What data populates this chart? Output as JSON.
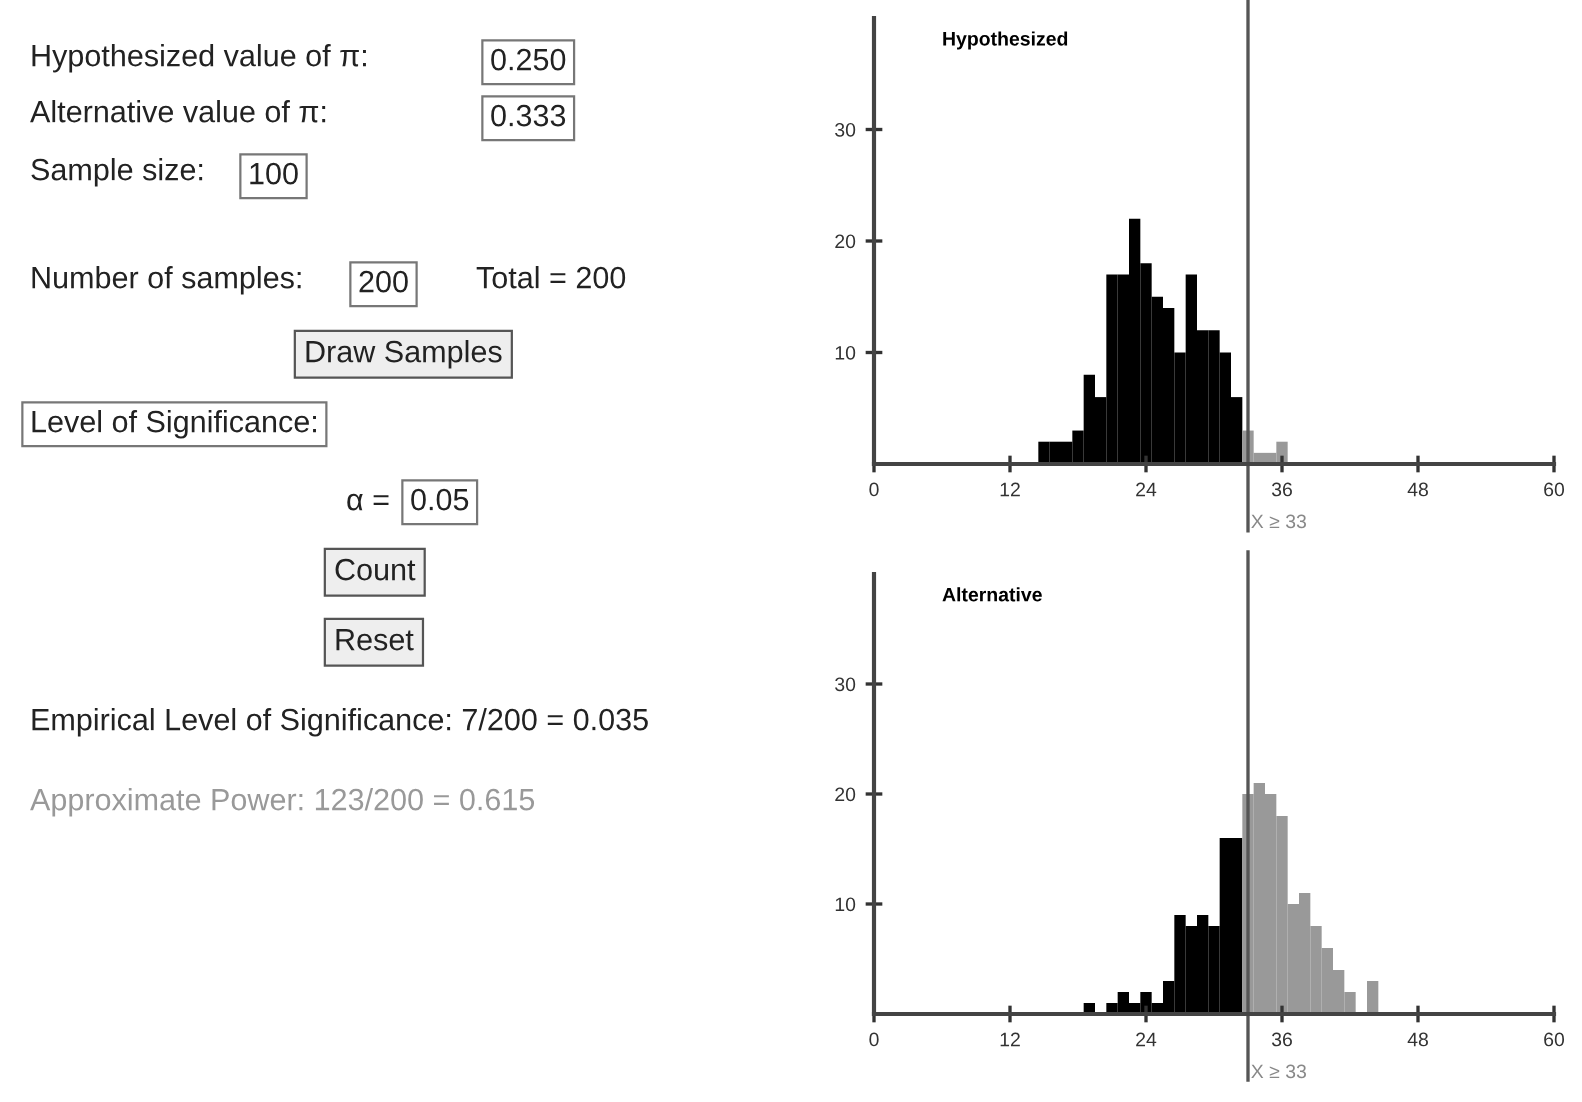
{
  "chart_data": [
    {
      "type": "other",
      "annotations": [
        "Hypothesized value of π:",
        "0.250",
        "Alternative value of π:",
        "0.333",
        "Sample size:",
        "100",
        "Number of samples:",
        "200",
        "Total = 200",
        "Draw Samples",
        "Level of Significance:",
        "α =",
        "0.05",
        "Count",
        "Reset",
        "Empirical Level of Significance: 7/200 = 0.035",
        "Approximate Power: 123/200 = 0.615"
      ]
    },
    {
      "type": "histogram",
      "title": "Hypothesized",
      "bins": [
        14.5,
        15.5,
        16.5,
        17.5,
        18.5,
        19.5,
        20.5,
        21.5,
        22.5,
        23.5,
        24.5,
        25.5,
        26.5,
        27.5,
        28.5,
        29.5,
        30.5,
        31.5,
        32.5,
        33.5,
        34.5,
        35.5,
        36.5
      ],
      "values": [
        2,
        2,
        2,
        3,
        8,
        6,
        17,
        17,
        22,
        18,
        15,
        14,
        10,
        17,
        12,
        12,
        10,
        6,
        3,
        1,
        1,
        2
      ],
      "colors": [
        "#000000",
        "#000000",
        "#000000",
        "#000000",
        "#000000",
        "#000000",
        "#000000",
        "#000000",
        "#000000",
        "#000000",
        "#000000",
        "#000000",
        "#000000",
        "#000000",
        "#000000",
        "#000000",
        "#000000",
        "#000000",
        "#999999",
        "#999999",
        "#999999",
        "#999999"
      ],
      "xlim": [
        0,
        60
      ],
      "xticks": [
        0,
        12,
        24,
        36,
        48,
        60
      ],
      "ylim": [
        0,
        40
      ],
      "yticks": [
        10,
        20,
        30
      ],
      "ref_lines": [
        {
          "axis": "x",
          "value": 33,
          "label": "X ≥ 33",
          "color": "#555555"
        }
      ]
    },
    {
      "type": "histogram",
      "title": "Alternative",
      "bins": [
        18.5,
        19.5,
        20.5,
        21.5,
        22.5,
        23.5,
        24.5,
        25.5,
        26.5,
        27.5,
        28.5,
        29.5,
        30.5,
        31.5,
        32.5,
        33.5,
        34.5,
        35.5,
        36.5,
        37.5,
        38.5,
        39.5,
        40.5,
        41.5,
        42.5,
        43.5,
        44.5
      ],
      "values": [
        1,
        0,
        1,
        2,
        1,
        2,
        1,
        3,
        9,
        8,
        9,
        8,
        16,
        16,
        20,
        21,
        20,
        18,
        10,
        11,
        8,
        6,
        4,
        2,
        0,
        3
      ],
      "colors": [
        "#000000",
        "#000000",
        "#000000",
        "#000000",
        "#000000",
        "#000000",
        "#000000",
        "#000000",
        "#000000",
        "#000000",
        "#000000",
        "#000000",
        "#000000",
        "#000000",
        "#999999",
        "#999999",
        "#999999",
        "#999999",
        "#999999",
        "#999999",
        "#999999",
        "#999999",
        "#999999",
        "#999999",
        "#999999",
        "#999999"
      ],
      "xlim": [
        0,
        60
      ],
      "xticks": [
        0,
        12,
        24,
        36,
        48,
        60
      ],
      "ylim": [
        0,
        40
      ],
      "yticks": [
        10,
        20,
        30
      ],
      "ref_lines": [
        {
          "axis": "x",
          "value": 33,
          "label": "X ≥ 33",
          "color": "#555555"
        }
      ]
    }
  ]
}
